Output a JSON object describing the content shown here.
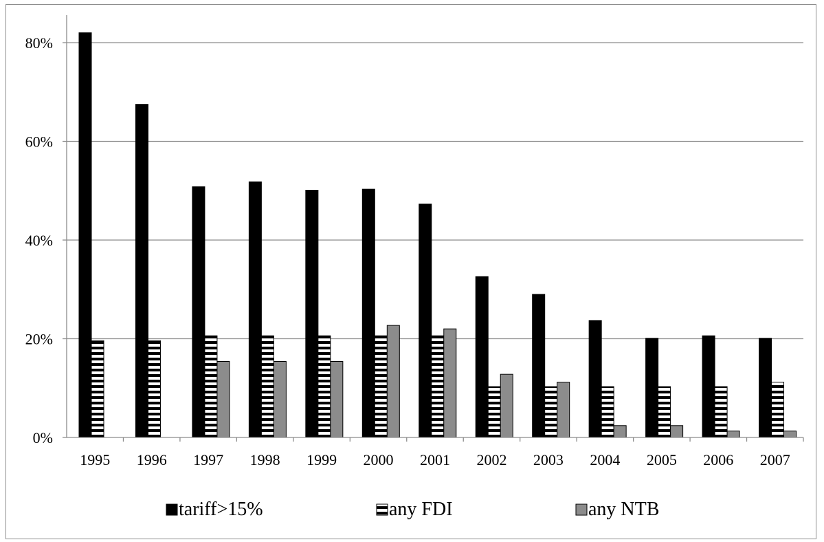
{
  "chart_data": {
    "type": "bar",
    "title": "",
    "xlabel": "",
    "ylabel": "",
    "categories": [
      "1995",
      "1996",
      "1997",
      "1998",
      "1999",
      "2000",
      "2001",
      "2002",
      "2003",
      "2004",
      "2005",
      "2006",
      "2007"
    ],
    "series": [
      {
        "name": "tariff>15%",
        "color": "#000000",
        "pattern": "solid",
        "values": [
          0.82,
          0.675,
          0.508,
          0.518,
          0.501,
          0.503,
          0.473,
          0.326,
          0.29,
          0.237,
          0.201,
          0.206,
          0.201
        ]
      },
      {
        "name": "any FDI",
        "color": "#000000",
        "pattern": "horizontal-stripes",
        "values": [
          0.196,
          0.196,
          0.206,
          0.206,
          0.206,
          0.206,
          0.206,
          0.103,
          0.103,
          0.103,
          0.103,
          0.103,
          0.112
        ]
      },
      {
        "name": "any NTB",
        "color": "#8c8c8c",
        "pattern": "solid",
        "values": [
          0,
          0,
          0.154,
          0.154,
          0.154,
          0.227,
          0.22,
          0.128,
          0.112,
          0.024,
          0.024,
          0.013,
          0.013
        ]
      }
    ],
    "ylim": [
      0,
      0.8
    ],
    "yticks": [
      0,
      0.2,
      0.4,
      0.6,
      0.8
    ],
    "ytick_labels": [
      "0%",
      "20%",
      "40%",
      "60%",
      "80%"
    ],
    "grid": true,
    "legend_position": "bottom"
  }
}
